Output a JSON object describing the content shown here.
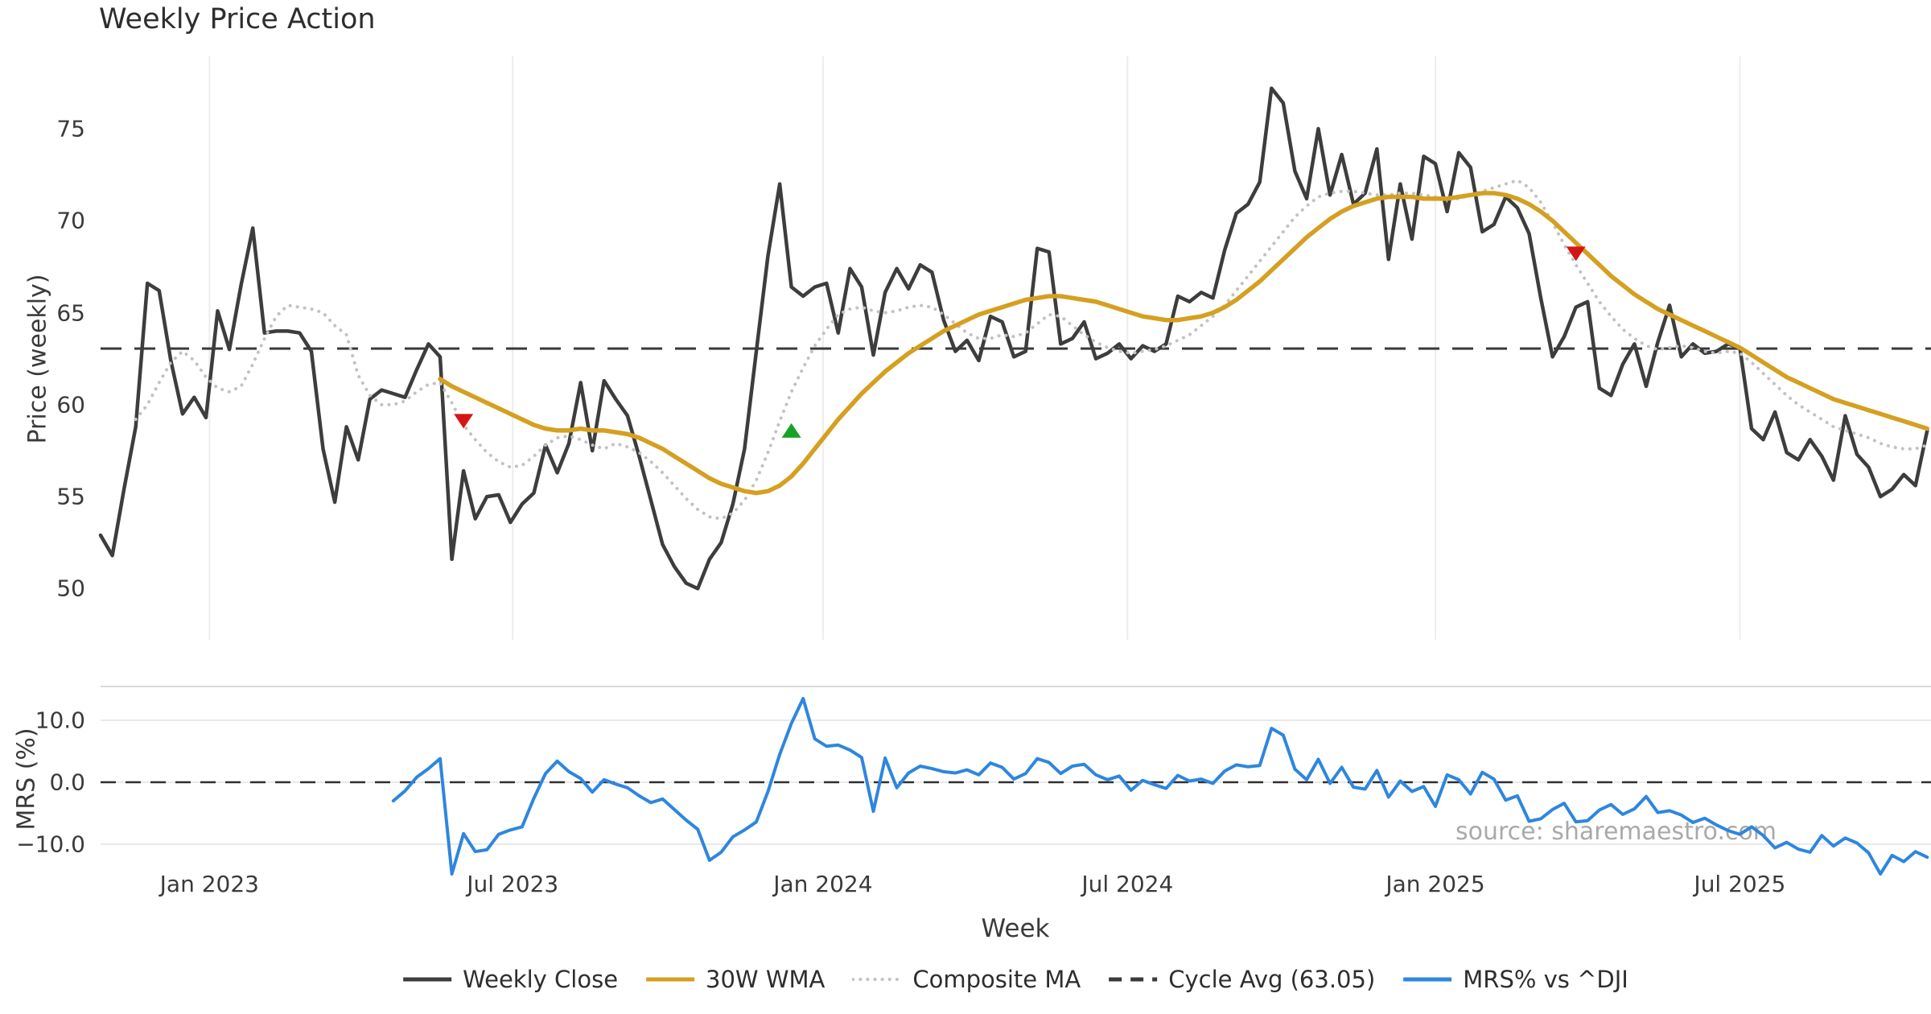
{
  "title": "Weekly Price Action",
  "watermark": "source: sharemaestro.com",
  "price_panel": {
    "ylabel": "Price (weekly)",
    "ytick_labels": [
      "75",
      "70",
      "65",
      "60",
      "55",
      "50"
    ],
    "ytick_values": [
      75,
      70,
      65,
      60,
      55,
      50
    ]
  },
  "mrs_panel": {
    "ylabel": "MRS (%)",
    "ytick_labels": [
      "10.0",
      "0.0",
      "−10.0"
    ],
    "ytick_values": [
      10,
      0,
      -10
    ]
  },
  "xaxis": {
    "label": "Week",
    "ticks": [
      {
        "pos": 9.3,
        "label": "Jan 2023"
      },
      {
        "pos": 35.2,
        "label": "Jul 2023"
      },
      {
        "pos": 61.7,
        "label": "Jan 2024"
      },
      {
        "pos": 87.7,
        "label": "Jul 2024"
      },
      {
        "pos": 114.0,
        "label": "Jan 2025"
      },
      {
        "pos": 140.0,
        "label": "Jul 2025"
      }
    ]
  },
  "legend": {
    "items": [
      {
        "label": "Weekly Close",
        "style": "solid",
        "color": "#3d3d3d"
      },
      {
        "label": "30W WMA",
        "style": "solid",
        "color": "#d5a021"
      },
      {
        "label": "Composite MA",
        "style": "dotted",
        "color": "#c2c2c2"
      },
      {
        "label": "Cycle Avg (63.05)",
        "style": "dashed",
        "color": "#3a3a3a"
      },
      {
        "label": "MRS% vs ^DJI",
        "style": "solid",
        "color": "#2e86de"
      }
    ]
  },
  "colors": {
    "weekly_close": "#3d3d3d",
    "wma30": "#d5a021",
    "composite_ma": "#c2c2c2",
    "cycle_avg": "#3a3a3a",
    "mrs": "#2e86de",
    "grid": "#ededed",
    "panel_border": "#d9d9d9",
    "mrs_grid": "#e9e9e9",
    "marker_sell": "#d51616",
    "marker_buy": "#18a326",
    "text": "#3a3a3a",
    "watermark": "#9b9b9b"
  },
  "chart_data": {
    "type": "line",
    "x_unit": "week_index",
    "weeks_span": 157,
    "price_ylim": [
      47.5,
      77.5
    ],
    "mrs_ylim": [
      -17,
      15.5
    ],
    "cycle_avg_value": 63.05,
    "series": [
      {
        "name": "Weekly Close",
        "panel": "price",
        "values": [
          52.9,
          51.8,
          55.4,
          58.8,
          66.6,
          66.2,
          62.4,
          59.5,
          60.4,
          59.3,
          65.1,
          63.0,
          66.5,
          69.6,
          63.9,
          64.0,
          64.0,
          63.9,
          62.9,
          57.6,
          54.7,
          58.8,
          57.0,
          60.3,
          60.8,
          60.6,
          60.4,
          61.9,
          63.3,
          62.6,
          51.6,
          56.4,
          53.8,
          55.0,
          55.1,
          53.6,
          54.6,
          55.2,
          57.8,
          56.3,
          57.9,
          61.2,
          57.5,
          61.3,
          60.3,
          59.4,
          57.2,
          54.8,
          52.4,
          51.2,
          50.3,
          50.0,
          51.6,
          52.5,
          54.6,
          57.6,
          62.9,
          68.1,
          72.0,
          66.4,
          65.9,
          66.4,
          66.6,
          63.9,
          67.4,
          66.4,
          62.7,
          66.1,
          67.4,
          66.3,
          67.6,
          67.2,
          64.6,
          62.9,
          63.5,
          62.4,
          64.8,
          64.5,
          62.6,
          62.9,
          68.5,
          68.3,
          63.3,
          63.6,
          64.5,
          62.5,
          62.8,
          63.3,
          62.5,
          63.2,
          62.9,
          63.3,
          65.9,
          65.6,
          66.1,
          65.8,
          68.4,
          70.4,
          70.9,
          72.1,
          77.2,
          76.4,
          72.7,
          71.2,
          75.0,
          71.4,
          73.6,
          70.9,
          71.5,
          73.9,
          67.9,
          72.0,
          69.0,
          73.5,
          73.1,
          70.5,
          73.7,
          72.9,
          69.4,
          69.8,
          71.3,
          70.7,
          69.3,
          65.8,
          62.6,
          63.7,
          65.3,
          65.6,
          60.9,
          60.5,
          62.2,
          63.3,
          61.0,
          63.4,
          65.4,
          62.6,
          63.3,
          62.8,
          62.9,
          63.3,
          63.1,
          58.7,
          58.1,
          59.6,
          57.4,
          57.0,
          58.1,
          57.2,
          55.9,
          59.4,
          57.3,
          56.6,
          55.0,
          55.4,
          56.2,
          55.6,
          58.6
        ]
      },
      {
        "name": "30W WMA",
        "panel": "price",
        "values": [
          null,
          null,
          null,
          null,
          null,
          null,
          null,
          null,
          null,
          null,
          null,
          null,
          null,
          null,
          null,
          null,
          null,
          null,
          null,
          null,
          null,
          null,
          null,
          null,
          null,
          null,
          null,
          null,
          null,
          61.4,
          61.0,
          60.7,
          60.4,
          60.1,
          59.8,
          59.5,
          59.2,
          58.9,
          58.7,
          58.6,
          58.6,
          58.7,
          58.6,
          58.6,
          58.5,
          58.4,
          58.2,
          57.9,
          57.6,
          57.2,
          56.8,
          56.4,
          56.0,
          55.7,
          55.5,
          55.3,
          55.2,
          55.3,
          55.6,
          56.1,
          56.8,
          57.6,
          58.4,
          59.2,
          59.9,
          60.6,
          61.2,
          61.8,
          62.3,
          62.8,
          63.2,
          63.6,
          64.0,
          64.3,
          64.6,
          64.9,
          65.1,
          65.3,
          65.5,
          65.7,
          65.8,
          65.9,
          65.9,
          65.8,
          65.7,
          65.6,
          65.4,
          65.2,
          65.0,
          64.8,
          64.7,
          64.6,
          64.6,
          64.7,
          64.8,
          65.0,
          65.3,
          65.7,
          66.2,
          66.7,
          67.3,
          67.9,
          68.5,
          69.1,
          69.6,
          70.1,
          70.5,
          70.8,
          71.0,
          71.2,
          71.3,
          71.3,
          71.3,
          71.2,
          71.2,
          71.2,
          71.3,
          71.4,
          71.5,
          71.5,
          71.4,
          71.2,
          70.9,
          70.5,
          70.0,
          69.4,
          68.8,
          68.2,
          67.6,
          67.0,
          66.5,
          66.0,
          65.6,
          65.2,
          64.9,
          64.6,
          64.3,
          64.0,
          63.7,
          63.4,
          63.1,
          62.7,
          62.3,
          61.9,
          61.5,
          61.2,
          60.9,
          60.6,
          60.3,
          60.1,
          59.9,
          59.7,
          59.5,
          59.3,
          59.1,
          58.9,
          58.7
        ]
      },
      {
        "name": "Composite MA",
        "panel": "price",
        "values": [
          null,
          null,
          null,
          59.2,
          60.0,
          61.2,
          62.3,
          62.9,
          62.4,
          61.5,
          60.9,
          60.7,
          61.0,
          62.2,
          63.6,
          64.8,
          65.4,
          65.3,
          65.2,
          65.0,
          64.3,
          63.8,
          61.6,
          60.5,
          60.0,
          60.0,
          60.2,
          60.7,
          61.1,
          61.2,
          60.1,
          58.9,
          58.1,
          57.4,
          56.9,
          56.6,
          56.7,
          57.2,
          57.8,
          58.2,
          58.3,
          58.1,
          57.8,
          57.6,
          57.9,
          57.7,
          57.4,
          56.9,
          56.3,
          55.6,
          54.9,
          54.3,
          53.9,
          53.8,
          54.1,
          54.8,
          55.9,
          57.4,
          59.1,
          60.7,
          62.0,
          63.2,
          64.1,
          64.9,
          65.2,
          65.3,
          65.1,
          65.0,
          65.1,
          65.3,
          65.4,
          65.3,
          64.9,
          64.4,
          63.9,
          63.6,
          63.6,
          63.8,
          63.7,
          63.9,
          64.4,
          64.9,
          64.8,
          64.3,
          63.8,
          63.4,
          63.1,
          62.9,
          62.8,
          62.9,
          63.0,
          63.2,
          63.5,
          63.8,
          64.3,
          64.8,
          65.4,
          66.2,
          67.0,
          67.8,
          68.6,
          69.4,
          70.2,
          70.8,
          71.3,
          71.5,
          71.6,
          71.6,
          71.5,
          71.4,
          71.4,
          71.5,
          71.5,
          71.4,
          71.3,
          71.2,
          71.2,
          71.4,
          71.6,
          71.8,
          72.0,
          72.2,
          71.8,
          71.0,
          69.9,
          68.7,
          67.6,
          66.6,
          65.6,
          64.8,
          64.1,
          63.6,
          63.2,
          63.0,
          63.1,
          63.2,
          63.1,
          62.9,
          62.8,
          62.9,
          62.8,
          62.3,
          61.7,
          61.1,
          60.5,
          60.0,
          59.6,
          59.2,
          58.8,
          58.6,
          58.4,
          58.2,
          57.9,
          57.7,
          57.6,
          57.6,
          57.8
        ]
      },
      {
        "name": "MRS% vs ^DJI",
        "panel": "mrs",
        "values": [
          null,
          null,
          null,
          null,
          null,
          null,
          null,
          null,
          null,
          null,
          null,
          null,
          null,
          null,
          null,
          null,
          null,
          null,
          null,
          null,
          null,
          null,
          null,
          null,
          null,
          -3.0,
          -1.4,
          0.8,
          2.2,
          3.8,
          -14.8,
          -8.3,
          -11.2,
          -10.9,
          -8.4,
          -7.7,
          -7.2,
          -2.6,
          1.4,
          3.4,
          1.7,
          0.6,
          -1.6,
          0.4,
          -0.3,
          -0.9,
          -2.2,
          -3.3,
          -2.7,
          -4.4,
          -6.1,
          -7.6,
          -12.6,
          -11.3,
          -8.8,
          -7.7,
          -6.4,
          -1.5,
          4.5,
          9.5,
          13.5,
          7.0,
          5.8,
          6.0,
          5.2,
          4.0,
          -4.7,
          3.9,
          -0.9,
          1.5,
          2.6,
          2.2,
          1.7,
          1.5,
          2.0,
          1.2,
          3.1,
          2.4,
          0.5,
          1.4,
          3.8,
          3.2,
          1.4,
          2.6,
          2.9,
          1.2,
          0.4,
          1.0,
          -1.3,
          0.3,
          -0.4,
          -1.0,
          1.1,
          0.2,
          0.5,
          -0.2,
          1.8,
          2.8,
          2.5,
          2.7,
          8.7,
          7.6,
          2.1,
          0.4,
          3.7,
          -0.2,
          2.4,
          -0.8,
          -1.1,
          1.9,
          -2.4,
          0.2,
          -1.5,
          -0.7,
          -3.9,
          1.2,
          0.4,
          -1.9,
          1.6,
          0.5,
          -2.9,
          -2.2,
          -6.3,
          -5.9,
          -4.4,
          -3.4,
          -6.4,
          -6.2,
          -4.5,
          -3.6,
          -5.2,
          -4.3,
          -2.3,
          -4.9,
          -4.6,
          -5.3,
          -6.5,
          -5.8,
          -6.9,
          -7.8,
          -8.4,
          -7.2,
          -8.6,
          -10.6,
          -9.7,
          -10.8,
          -11.3,
          -8.6,
          -10.3,
          -9.0,
          -9.8,
          -11.4,
          -14.8,
          -11.8,
          -12.8,
          -11.2,
          -12.1
        ]
      }
    ],
    "markers": [
      {
        "week": 31,
        "price": 59.1,
        "type": "sell"
      },
      {
        "week": 59,
        "price": 58.6,
        "type": "buy"
      },
      {
        "week": 126,
        "price": 68.2,
        "type": "sell"
      }
    ]
  }
}
